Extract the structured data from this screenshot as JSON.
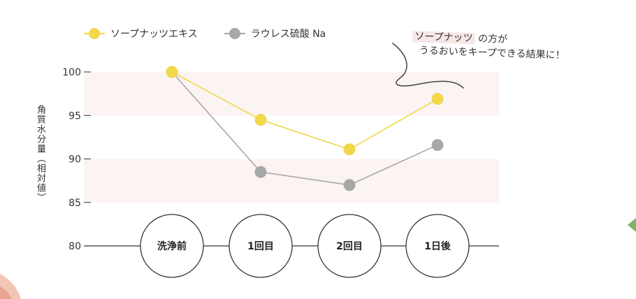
{
  "legend": [
    {
      "label": "ソープナッツエキス",
      "color": "#f0d84a"
    },
    {
      "label": "ラウレス硫酸 Na",
      "color": "#a8a8a8"
    }
  ],
  "annotation": {
    "highlight": "ソープナッツ",
    "line1_rest": "の方が",
    "line2": "うるおいをキープできる結果に！"
  },
  "chart_data": {
    "type": "line",
    "categories": [
      "洗浄前",
      "1回目",
      "2回目",
      "1日後"
    ],
    "series": [
      {
        "name": "ソープナッツエキス",
        "values": [
          100,
          94.5,
          91.1,
          96.9
        ],
        "color": "#f0d84a"
      },
      {
        "name": "ラウレス硫酸 Na",
        "values": [
          100,
          88.5,
          87.0,
          91.6
        ],
        "color": "#a8a8a8"
      }
    ],
    "ylabel": "角質水分量（相対値）",
    "ylim": [
      80,
      100
    ],
    "yticks": [
      80,
      85,
      90,
      95,
      100
    ],
    "bands": [
      [
        95,
        100
      ],
      [
        85,
        90
      ]
    ],
    "band_color": "#fbf4f3"
  }
}
